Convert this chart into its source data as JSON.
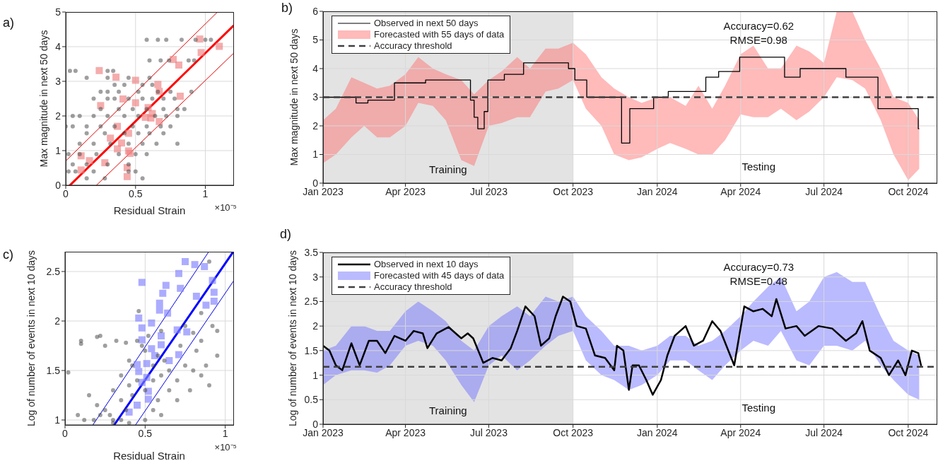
{
  "chart_data": [
    {
      "type": "scatter",
      "title": "a)",
      "xlabel": "Residual Strain",
      "ylabel": "Max magnitude in next 50 days",
      "annotations": [
        "×10⁻⁵"
      ],
      "xlim": [
        0,
        1.2
      ],
      "ylim": [
        0,
        5
      ],
      "xticks": [
        0,
        0.5,
        1
      ],
      "yticks": [
        0,
        1,
        2,
        3,
        4,
        5
      ],
      "grid": true,
      "series": [
        {
          "type": "scatter",
          "marker": "circle",
          "color": "#404040",
          "x": [
            0.58,
            0.66,
            0.72,
            0.83,
            0.93,
            1.0,
            1.04,
            0.6,
            0.68,
            0.74,
            0.88,
            0.92,
            0.03,
            0.07,
            0.3,
            0.34,
            0.15,
            0.3,
            0.45,
            0.6,
            0.35,
            0.42,
            0.55,
            0.62,
            0.25,
            0.3,
            0.38,
            0.52,
            0.66,
            0.75,
            0.9,
            0.2,
            0.3,
            0.35,
            0.45,
            0.55,
            0.62,
            0.7,
            0.78,
            0.25,
            0.38,
            0.48,
            0.58,
            0.7,
            0.8,
            0.85,
            0.05,
            0.1,
            0.2,
            0.3,
            0.42,
            0.52,
            0.64,
            0.72,
            0.8,
            0.0,
            0.05,
            0.15,
            0.25,
            0.35,
            0.48,
            0.58,
            0.68,
            0.75,
            0.15,
            0.28,
            0.42,
            0.52,
            0.6,
            0.7,
            0.1,
            0.2,
            0.32,
            0.45,
            0.55,
            0.65,
            0.8,
            0.02,
            0.1,
            0.22,
            0.38,
            0.5,
            0.58,
            0.05,
            0.15,
            0.3,
            0.45,
            0.02,
            0.07,
            0.2,
            0.45,
            0.5,
            0.15,
            0.28,
            0.55
          ],
          "values": [
            4.2,
            4.2,
            4.2,
            4.2,
            4.2,
            4.2,
            4.2,
            3.6,
            3.6,
            3.6,
            3.6,
            3.6,
            3.3,
            3.3,
            3.3,
            3.3,
            3.1,
            3.1,
            3.1,
            3.1,
            2.9,
            2.9,
            2.9,
            2.9,
            2.7,
            2.7,
            2.7,
            2.7,
            2.7,
            2.7,
            2.7,
            2.5,
            2.5,
            2.5,
            2.5,
            2.5,
            2.5,
            2.5,
            2.5,
            2.2,
            2.2,
            2.2,
            2.2,
            2.2,
            2.2,
            2.2,
            2.0,
            2.0,
            2.0,
            2.0,
            2.0,
            2.0,
            2.0,
            2.0,
            2.0,
            1.7,
            1.7,
            1.7,
            1.7,
            1.7,
            1.7,
            1.7,
            1.7,
            1.7,
            1.5,
            1.5,
            1.5,
            1.5,
            1.5,
            1.5,
            1.2,
            1.2,
            1.2,
            1.2,
            1.2,
            1.2,
            1.2,
            0.9,
            0.9,
            0.9,
            0.9,
            0.9,
            0.9,
            0.6,
            0.6,
            0.6,
            0.6,
            0.4,
            0.4,
            0.4,
            0.4,
            0.4,
            0.2,
            0.2,
            0.2
          ]
        },
        {
          "type": "scatter",
          "marker": "square",
          "color": "#f08080",
          "x": [
            0.96,
            1.1,
            0.97,
            0.77,
            0.81,
            0.24,
            0.36,
            0.5,
            0.66,
            0.67,
            0.82,
            0.41,
            0.5,
            0.25,
            0.59,
            0.62,
            0.57,
            0.61,
            0.67,
            0.37,
            0.45,
            0.32,
            0.4,
            0.37,
            0.45,
            0.46,
            0.11,
            0.17,
            0.28,
            0.11,
            0.44,
            0.44
          ],
          "values": [
            4.22,
            4.01,
            3.83,
            3.63,
            3.47,
            3.31,
            3.12,
            3.03,
            2.91,
            2.71,
            2.57,
            2.49,
            2.38,
            2.3,
            2.24,
            2.07,
            1.96,
            1.94,
            1.84,
            1.7,
            1.5,
            1.36,
            1.22,
            1.05,
            0.99,
            0.92,
            0.85,
            0.71,
            0.65,
            0.44,
            0.51,
            0.25
          ]
        },
        {
          "type": "line",
          "color": "#ff0000",
          "x": [
            0.03,
            1.2
          ],
          "values": [
            0,
            4.6
          ]
        },
        {
          "type": "line",
          "color": "#e00000",
          "x": [
            0,
            1.087
          ],
          "values": [
            0.7,
            5
          ]
        },
        {
          "type": "line",
          "color": "#e00000",
          "x": [
            0.22,
            1.2
          ],
          "values": [
            0,
            3.8
          ]
        }
      ]
    },
    {
      "type": "line",
      "title": "b)",
      "ylabel": "Max magnitude in next 50 days",
      "annotations": [
        "Accuracy=0.62",
        "RMSE=0.98",
        "Testing"
      ],
      "xlim": [
        "2023-01-01",
        "2024-11-01"
      ],
      "ylim": [
        0,
        6
      ],
      "xticks": [
        {
          "value": "2023-01-01",
          "label": "Jan 2023"
        },
        {
          "value": "2023-04-01",
          "label": "Apr 2023"
        },
        {
          "value": "2023-07-01",
          "label": "Jul 2023"
        },
        {
          "value": "2023-10-01",
          "label": "Oct 2023"
        },
        {
          "value": "2024-01-01",
          "label": "Jan 2024"
        },
        {
          "value": "2024-04-01",
          "label": "Apr 2024"
        },
        {
          "value": "2024-07-01",
          "label": "Jul 2024"
        },
        {
          "value": "2024-10-01",
          "label": "Oct 2024"
        }
      ],
      "yticks": [
        0,
        1,
        2,
        3,
        4,
        5,
        6
      ],
      "grid": true,
      "legend": "top left",
      "bands": [
        {
          "axis": "x",
          "from": "2023-01-01",
          "to": "2023-10-01",
          "label": "Training",
          "color": "#e3e3e3"
        }
      ],
      "ref_lines": [
        {
          "axis": "y",
          "value": 3,
          "label": "Accuracy threshold",
          "color": "#404040",
          "line_style": "dashed"
        }
      ],
      "series": [
        {
          "name": "Forecasted with 55 days of data",
          "type": "area",
          "color": "#ff6666",
          "values": [
            null,
            null,
            null,
            null,
            null,
            null,
            null,
            null,
            null,
            null,
            null,
            null,
            null,
            null,
            null,
            null,
            null,
            null,
            null,
            null,
            null,
            null,
            null,
            null,
            null,
            null,
            null,
            null,
            null,
            null,
            null,
            null,
            null,
            null,
            null,
            null,
            null,
            null,
            null,
            null,
            null,
            null,
            null,
            null
          ],
          "x": [
            "2023-01-01",
            "2023-01-15",
            "2023-02-01",
            "2023-02-15",
            "2023-03-01",
            "2023-03-15",
            "2023-04-01",
            "2023-04-15",
            "2023-05-01",
            "2023-05-15",
            "2023-06-01",
            "2023-06-15",
            "2023-07-01",
            "2023-07-15",
            "2023-08-01",
            "2023-08-15",
            "2023-09-01",
            "2023-09-15",
            "2023-10-01",
            "2023-10-15",
            "2023-11-01",
            "2023-11-15",
            "2023-12-01",
            "2023-12-15",
            "2024-01-01",
            "2024-01-15",
            "2024-02-01",
            "2024-02-15",
            "2024-03-01",
            "2024-03-15",
            "2024-04-01",
            "2024-04-15",
            "2024-05-01",
            "2024-05-15",
            "2024-06-01",
            "2024-06-15",
            "2024-07-01",
            "2024-07-15",
            "2024-08-01",
            "2024-08-15",
            "2024-09-01",
            "2024-09-15",
            "2024-10-01",
            "2024-10-13"
          ],
          "lower": [
            0.7,
            1.0,
            1.6,
            2.0,
            1.6,
            1.6,
            2.0,
            2.8,
            2.7,
            2.2,
            0.8,
            0.6,
            2.0,
            2.1,
            2.3,
            2.3,
            3.2,
            3.3,
            3.6,
            2.6,
            2.0,
            1.0,
            0.8,
            0.9,
            1.2,
            1.4,
            1.2,
            1.0,
            1.0,
            1.5,
            2.4,
            2.3,
            2.3,
            2.6,
            2.2,
            2.5,
            3.0,
            3.7,
            3.6,
            3.3,
            2.2,
            1.0,
            0.1,
            0.5
          ],
          "upper": [
            2.2,
            2.6,
            3.7,
            3.5,
            3.3,
            3.4,
            3.8,
            4.4,
            4.0,
            3.8,
            3.6,
            3.1,
            3.6,
            3.9,
            4.4,
            4.0,
            4.7,
            4.7,
            4.9,
            4.5,
            3.7,
            3.3,
            3.0,
            2.8,
            3.0,
            3.0,
            2.7,
            3.4,
            2.6,
            3.4,
            4.5,
            4.8,
            4.0,
            4.0,
            4.8,
            4.6,
            4.2,
            6.0,
            6.0,
            5.0,
            4.0,
            3.0,
            2.8,
            2.2
          ]
        },
        {
          "name": "Observed in next 50 days",
          "type": "step",
          "color": "#000000",
          "x": [
            "2023-01-01",
            "2023-02-06",
            "2023-02-19",
            "2023-03-20",
            "2023-04-23",
            "2023-06-11",
            "2023-06-15",
            "2023-06-19",
            "2023-06-26",
            "2023-06-30",
            "2023-07-18",
            "2023-08-08",
            "2023-09-26",
            "2023-10-03",
            "2023-10-16",
            "2023-11-23",
            "2023-12-02",
            "2023-12-28",
            "2024-01-13",
            "2024-02-23",
            "2024-03-08",
            "2024-03-31",
            "2024-05-19",
            "2024-06-05",
            "2024-07-25",
            "2024-08-29",
            "2024-10-12",
            "2024-10-13"
          ],
          "values": [
            3.0,
            2.8,
            2.9,
            3.5,
            3.6,
            2.9,
            2.3,
            1.9,
            2.5,
            3.6,
            3.8,
            4.2,
            4.0,
            3.6,
            3.0,
            1.4,
            2.6,
            3.0,
            3.2,
            3.7,
            3.9,
            4.4,
            3.7,
            4.0,
            3.7,
            2.6,
            1.9,
            1.9
          ]
        }
      ]
    },
    {
      "type": "scatter",
      "title": "c)",
      "xlabel": "Residual Strain",
      "ylabel": "Log of number of events in next 10 days",
      "annotations": [
        "×10⁻⁵"
      ],
      "xlim": [
        0,
        1.05
      ],
      "ylim": [
        0.95,
        2.7
      ],
      "xticks": [
        0,
        0.5,
        1
      ],
      "yticks": [
        1,
        1.5,
        2,
        2.5
      ],
      "grid": true,
      "series": [
        {
          "type": "scatter",
          "marker": "circle",
          "color": "#404040",
          "x": [
            0.02,
            0.1,
            0.1,
            0.2,
            0.22,
            0.25,
            0.15,
            0.08,
            0.12,
            0.2,
            0.25,
            0.3,
            0.3,
            0.35,
            0.35,
            0.38,
            0.4,
            0.42,
            0.4,
            0.45,
            0.46,
            0.5,
            0.5,
            0.5,
            0.55,
            0.55,
            0.58,
            0.6,
            0.62,
            0.65,
            0.65,
            0.7,
            0.7,
            0.72,
            0.75,
            0.78,
            0.8,
            0.82,
            0.85,
            0.85,
            0.88,
            0.9,
            0.92,
            0.95,
            0.95,
            0.9,
            0.85,
            0.3,
            0.28,
            0.35,
            0.4,
            0.18,
            0.22,
            0.42,
            0.48,
            0.52,
            0.58,
            0.6,
            0.55,
            0.45,
            0.32,
            0.38,
            0.6,
            0.75,
            0.8
          ],
          "values": [
            1.48,
            1.8,
            1.77,
            1.84,
            1.85,
            1.75,
            1.25,
            1.05,
            1.0,
            1.15,
            1.1,
            1.0,
            1.3,
            1.2,
            1.45,
            1.1,
            1.35,
            1.25,
            1.6,
            1.8,
            2.1,
            1.7,
            1.0,
            1.3,
            1.4,
            1.55,
            1.2,
            1.45,
            1.6,
            1.3,
            1.5,
            1.4,
            1.2,
            1.75,
            1.55,
            1.3,
            1.5,
            1.7,
            1.45,
            1.8,
            1.55,
            1.35,
            1.95,
            1.9,
            1.65,
            2.6,
            2.08,
            0.97,
            1.05,
            1.0,
            0.97,
            1.0,
            1.05,
            1.55,
            1.75,
            1.85,
            1.65,
            1.9,
            1.1,
            1.4,
            1.8,
            1.78,
            1.05,
            1.95,
            1.88
          ]
        },
        {
          "type": "scatter",
          "marker": "square",
          "color": "#8080ff",
          "x": [
            0.75,
            0.81,
            0.87,
            0.71,
            0.48,
            0.92,
            0.63,
            0.61,
            0.72,
            0.93,
            0.93,
            0.82,
            0.59,
            0.59,
            0.88,
            0.64,
            0.46,
            0.54,
            0.48,
            0.7,
            0.76,
            0.6,
            0.48,
            0.6,
            0.54,
            0.56,
            0.71,
            0.65,
            0.45,
            0.51,
            0.46,
            0.51,
            0.48,
            0.52,
            0.52,
            0.45,
            0.4
          ],
          "values": [
            2.6,
            2.57,
            2.55,
            2.48,
            2.39,
            2.41,
            2.36,
            2.28,
            2.33,
            2.29,
            2.2,
            2.25,
            2.18,
            2.11,
            2.16,
            2.08,
            2.03,
            1.98,
            1.93,
            1.91,
            1.89,
            1.85,
            1.81,
            1.76,
            1.72,
            1.65,
            1.66,
            1.6,
            1.56,
            1.57,
            1.49,
            1.43,
            1.38,
            1.29,
            1.21,
            1.15,
            1.08
          ]
        },
        {
          "type": "line",
          "color": "#0000ff",
          "x": [
            0.307,
            1.05
          ],
          "values": [
            0.95,
            2.7
          ]
        },
        {
          "type": "line",
          "color": "#0000e0",
          "x": [
            0.174,
            0.897
          ],
          "values": [
            0.95,
            2.7
          ]
        },
        {
          "type": "line",
          "color": "#0000e0",
          "x": [
            0.44,
            1.05
          ],
          "values": [
            0.95,
            2.4
          ]
        }
      ]
    },
    {
      "type": "line",
      "title": "d)",
      "ylabel": "Log of number of events in next 10 days",
      "annotations": [
        "Accuracy=0.73",
        "RMSE=0.48",
        "Testing"
      ],
      "xlim": [
        "2023-01-01",
        "2024-11-01"
      ],
      "ylim": [
        0,
        3.5
      ],
      "xticks": [
        {
          "value": "2023-01-01",
          "label": "Jan 2023"
        },
        {
          "value": "2023-04-01",
          "label": "Apr 2023"
        },
        {
          "value": "2023-07-01",
          "label": "Jul 2023"
        },
        {
          "value": "2023-10-01",
          "label": "Oct 2023"
        },
        {
          "value": "2024-01-01",
          "label": "Jan 2024"
        },
        {
          "value": "2024-04-01",
          "label": "Apr 2024"
        },
        {
          "value": "2024-07-01",
          "label": "Jul 2024"
        },
        {
          "value": "2024-10-01",
          "label": "Oct 2024"
        }
      ],
      "yticks": [
        0,
        0.5,
        1,
        1.5,
        2,
        2.5,
        3,
        3.5
      ],
      "grid": true,
      "legend": "top left",
      "bands": [
        {
          "axis": "x",
          "from": "2023-01-01",
          "to": "2023-10-01",
          "label": "Training",
          "color": "#e3e3e3"
        }
      ],
      "ref_lines": [
        {
          "axis": "y",
          "value": 1.17,
          "label": "Accuracy threshold",
          "color": "#404040",
          "line_style": "dashed"
        }
      ],
      "series": [
        {
          "name": "Forecasted with 45 days of data",
          "type": "area",
          "color": "#6666ff",
          "values": [
            null,
            null,
            null,
            null,
            null,
            null,
            null,
            null,
            null,
            null,
            null,
            null,
            null,
            null,
            null,
            null,
            null,
            null,
            null,
            null,
            null,
            null,
            null,
            null,
            null,
            null,
            null,
            null,
            null,
            null,
            null,
            null,
            null,
            null,
            null,
            null,
            null,
            null,
            null,
            null,
            null,
            null,
            null,
            null
          ],
          "x": [
            "2023-01-01",
            "2023-01-15",
            "2023-02-01",
            "2023-02-15",
            "2023-03-01",
            "2023-03-15",
            "2023-04-01",
            "2023-04-15",
            "2023-05-01",
            "2023-05-15",
            "2023-06-01",
            "2023-06-15",
            "2023-07-01",
            "2023-07-15",
            "2023-08-01",
            "2023-08-15",
            "2023-09-01",
            "2023-09-15",
            "2023-10-01",
            "2023-10-15",
            "2023-11-01",
            "2023-11-15",
            "2023-12-01",
            "2023-12-15",
            "2024-01-01",
            "2024-01-15",
            "2024-02-01",
            "2024-02-15",
            "2024-03-01",
            "2024-03-15",
            "2024-04-01",
            "2024-04-15",
            "2024-05-01",
            "2024-05-15",
            "2024-06-01",
            "2024-06-15",
            "2024-07-01",
            "2024-07-15",
            "2024-08-01",
            "2024-08-15",
            "2024-09-01",
            "2024-09-15",
            "2024-10-01",
            "2024-10-13"
          ],
          "lower": [
            0.8,
            1.0,
            1.1,
            1.1,
            1.05,
            1.2,
            1.6,
            1.7,
            1.6,
            1.3,
            0.8,
            0.45,
            1.2,
            1.4,
            1.1,
            1.3,
            1.6,
            1.8,
            1.9,
            1.3,
            1.0,
            0.9,
            0.7,
            0.8,
            1.0,
            1.3,
            1.3,
            1.1,
            0.9,
            1.2,
            1.5,
            1.7,
            1.6,
            1.9,
            1.3,
            1.2,
            1.6,
            1.6,
            1.5,
            1.7,
            1.2,
            0.9,
            0.6,
            0.5
          ],
          "upper": [
            1.5,
            1.6,
            2.0,
            2.0,
            1.9,
            1.9,
            2.3,
            2.5,
            2.3,
            2.1,
            1.7,
            1.5,
            2.0,
            2.2,
            2.4,
            2.2,
            2.6,
            2.5,
            2.6,
            2.2,
            1.9,
            1.6,
            1.6,
            1.5,
            1.6,
            1.8,
            1.8,
            1.6,
            1.7,
            1.9,
            2.2,
            2.5,
            2.8,
            3.0,
            2.3,
            2.5,
            3.0,
            3.1,
            2.9,
            2.9,
            2.2,
            1.7,
            1.5,
            1.4
          ]
        },
        {
          "name": "Observed in next 10 days",
          "type": "line",
          "color": "#000000",
          "x": [
            "2023-01-01",
            "2023-01-08",
            "2023-01-15",
            "2023-01-22",
            "2023-02-01",
            "2023-02-10",
            "2023-02-20",
            "2023-03-01",
            "2023-03-10",
            "2023-03-20",
            "2023-04-01",
            "2023-04-10",
            "2023-04-20",
            "2023-04-25",
            "2023-05-05",
            "2023-05-18",
            "2023-06-01",
            "2023-06-08",
            "2023-06-14",
            "2023-06-25",
            "2023-07-05",
            "2023-07-15",
            "2023-07-25",
            "2023-08-01",
            "2023-08-10",
            "2023-08-20",
            "2023-08-27",
            "2023-09-05",
            "2023-09-12",
            "2023-09-20",
            "2023-09-28",
            "2023-10-05",
            "2023-10-15",
            "2023-10-25",
            "2023-11-05",
            "2023-11-15",
            "2023-11-18",
            "2023-11-25",
            "2023-12-01",
            "2023-12-05",
            "2023-12-12",
            "2023-12-20",
            "2023-12-27",
            "2024-01-05",
            "2024-01-12",
            "2024-01-20",
            "2024-02-01",
            "2024-02-10",
            "2024-02-20",
            "2024-03-01",
            "2024-03-10",
            "2024-03-25",
            "2024-04-05",
            "2024-04-15",
            "2024-04-25",
            "2024-05-05",
            "2024-05-10",
            "2024-05-20",
            "2024-06-01",
            "2024-06-10",
            "2024-06-25",
            "2024-07-10",
            "2024-07-25",
            "2024-08-05",
            "2024-08-12",
            "2024-08-20",
            "2024-09-01",
            "2024-09-10",
            "2024-09-20",
            "2024-09-28",
            "2024-10-05",
            "2024-10-12",
            "2024-10-15"
          ],
          "values": [
            1.6,
            1.5,
            1.2,
            1.1,
            1.65,
            1.2,
            1.7,
            1.7,
            1.45,
            1.8,
            1.7,
            1.9,
            1.85,
            1.55,
            1.85,
            1.98,
            1.75,
            1.85,
            1.75,
            1.25,
            1.35,
            1.3,
            1.55,
            1.9,
            2.4,
            2.2,
            1.6,
            1.75,
            2.2,
            2.6,
            2.5,
            2.0,
            1.95,
            1.4,
            1.35,
            1.1,
            1.6,
            1.5,
            0.7,
            1.2,
            1.2,
            0.9,
            0.6,
            0.9,
            1.4,
            1.8,
            2.0,
            1.6,
            1.7,
            2.1,
            1.9,
            1.2,
            2.4,
            2.3,
            2.35,
            2.2,
            2.55,
            1.95,
            2.0,
            1.8,
            2.0,
            1.95,
            1.7,
            1.85,
            2.1,
            1.5,
            1.35,
            1.0,
            1.3,
            1.0,
            1.5,
            1.45,
            1.2
          ]
        }
      ]
    }
  ]
}
